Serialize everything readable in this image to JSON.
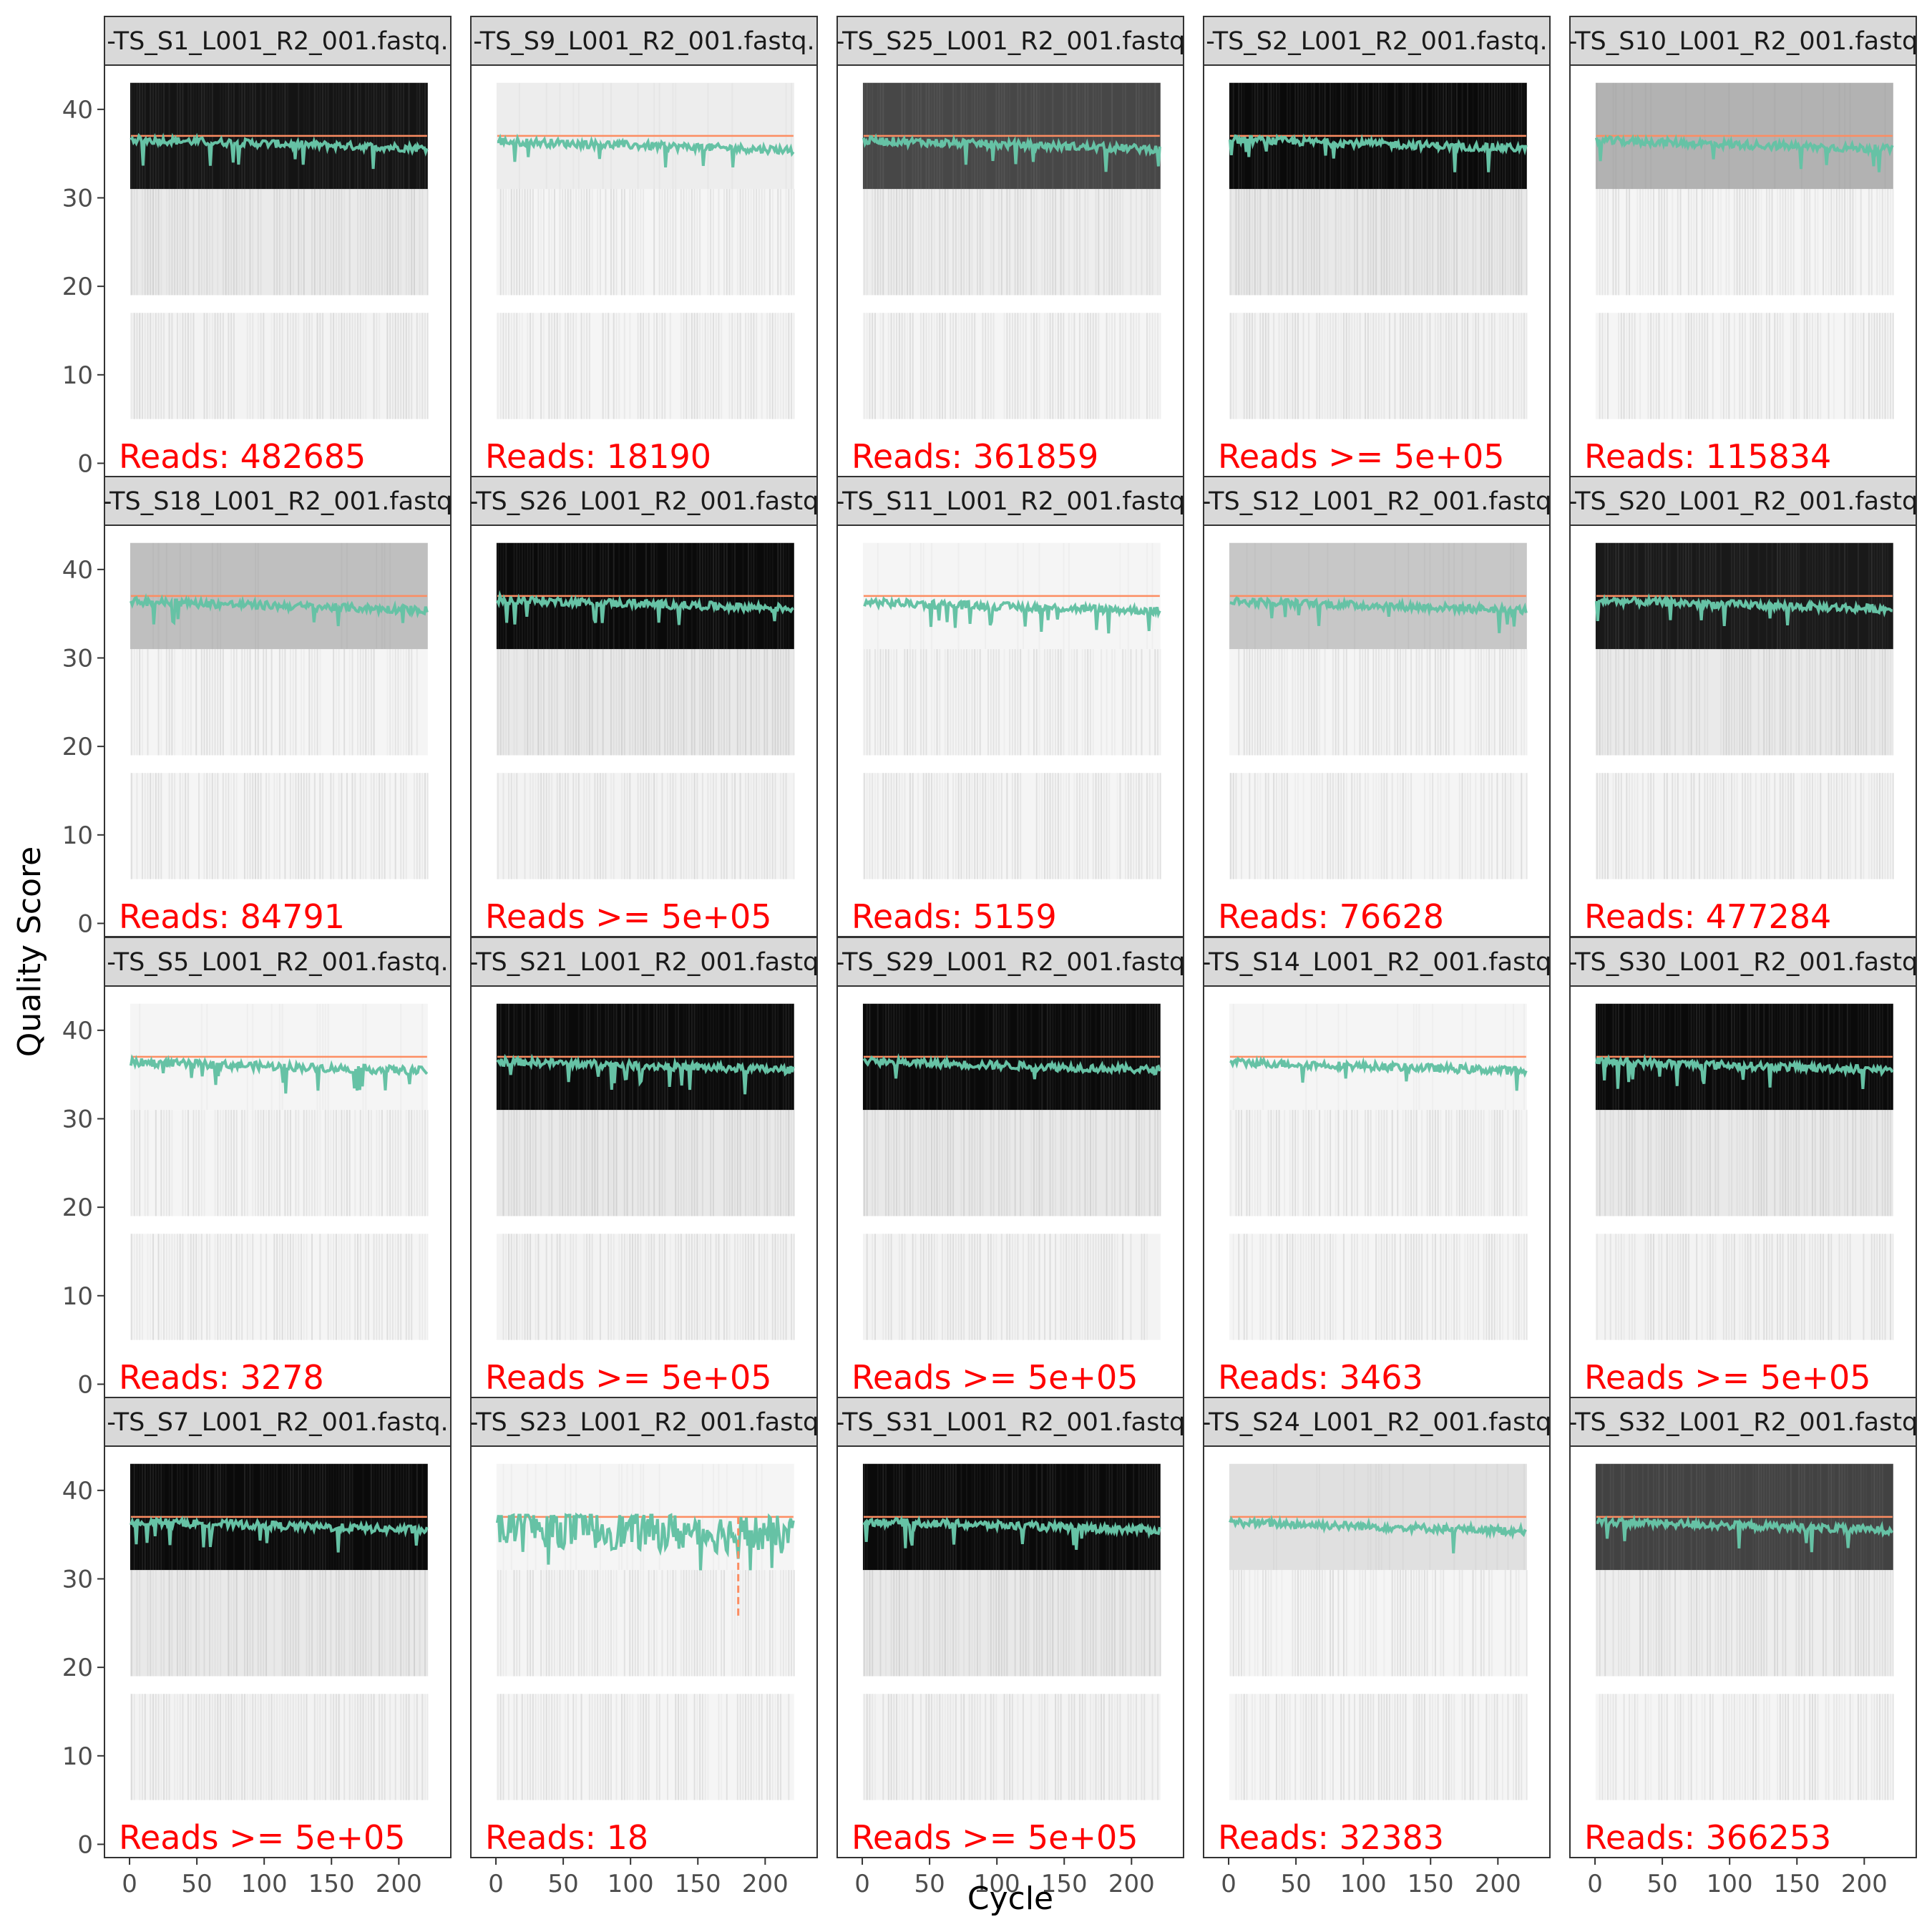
{
  "chart_data": {
    "type": "line",
    "xlabel": "Cycle",
    "ylabel": "Quality Score",
    "xlim": [
      -8,
      228
    ],
    "ylim": [
      -1.5,
      45
    ],
    "x_ticks": [
      0,
      50,
      100,
      150,
      200
    ],
    "y_ticks": [
      0,
      10,
      20,
      30,
      40
    ],
    "cycles": 221,
    "colors": {
      "mean_line": "#66c2a5",
      "median_line": "#fc8d62",
      "reads_label": "#ff0000",
      "strip_fill": "#d9d9d9"
    },
    "panels": [
      {
        "strip": "-TS_S1_L001_R2_001.fastq.",
        "reads": "Reads:  482685",
        "shade": 0.92,
        "median": 37,
        "mean": 36.2
      },
      {
        "strip": "-TS_S9_L001_R2_001.fastq.",
        "reads": "Reads:  18190",
        "shade": 0.07,
        "median": 37,
        "mean": 36.0
      },
      {
        "strip": "-TS_S25_L001_R2_001.fastq",
        "reads": "Reads:  361859",
        "shade": 0.72,
        "median": 37,
        "mean": 36.1
      },
      {
        "strip": "-TS_S2_L001_R2_001.fastq.",
        "reads": "Reads >=  5e+05",
        "shade": 0.96,
        "median": 37,
        "mean": 36.2
      },
      {
        "strip": "-TS_S10_L001_R2_001.fastq",
        "reads": "Reads:  115834",
        "shade": 0.3,
        "median": 37,
        "mean": 36.1
      },
      {
        "strip": "-TS_S18_L001_R2_001.fastq",
        "reads": "Reads:  84791",
        "shade": 0.25,
        "median": 37,
        "mean": 36.0
      },
      {
        "strip": "-TS_S26_L001_R2_001.fastq",
        "reads": "Reads >=  5e+05",
        "shade": 0.96,
        "median": 37,
        "mean": 36.2
      },
      {
        "strip": "-TS_S11_L001_R2_001.fastq",
        "reads": "Reads:  5159",
        "shade": 0.03,
        "median": 37,
        "mean": 35.9
      },
      {
        "strip": "-TS_S12_L001_R2_001.fastq",
        "reads": "Reads:  76628",
        "shade": 0.22,
        "median": 37,
        "mean": 36.0
      },
      {
        "strip": "-TS_S20_L001_R2_001.fastq",
        "reads": "Reads:  477284",
        "shade": 0.9,
        "median": 37,
        "mean": 36.1
      },
      {
        "strip": "-TS_S5_L001_R2_001.fastq.",
        "reads": "Reads:  3278",
        "shade": 0.04,
        "median": 37,
        "mean": 36.0
      },
      {
        "strip": "-TS_S21_L001_R2_001.fastq",
        "reads": "Reads >=  5e+05",
        "shade": 0.96,
        "median": 37,
        "mean": 36.1
      },
      {
        "strip": "-TS_S29_L001_R2_001.fastq",
        "reads": "Reads >=  5e+05",
        "shade": 0.96,
        "median": 37,
        "mean": 36.1
      },
      {
        "strip": "-TS_S14_L001_R2_001.fastq",
        "reads": "Reads:  3463",
        "shade": 0.04,
        "median": 37,
        "mean": 36.0
      },
      {
        "strip": "-TS_S30_L001_R2_001.fastq",
        "reads": "Reads >=  5e+05",
        "shade": 0.96,
        "median": 37,
        "mean": 36.1
      },
      {
        "strip": "-TS_S7_L001_R2_001.fastq.",
        "reads": "Reads >=  5e+05",
        "shade": 0.96,
        "median": 37,
        "mean": 36.1
      },
      {
        "strip": "-TS_S23_L001_R2_001.fastq",
        "reads": "Reads:  18",
        "shade": 0.02,
        "median": 37,
        "mean": 35.5
      },
      {
        "strip": "-TS_S31_L001_R2_001.fastq",
        "reads": "Reads >=  5e+05",
        "shade": 0.96,
        "median": 37,
        "mean": 36.1
      },
      {
        "strip": "-TS_S24_L001_R2_001.fastq",
        "reads": "Reads:  32383",
        "shade": 0.12,
        "median": 37,
        "mean": 36.0
      },
      {
        "strip": "-TS_S32_L001_R2_001.fastq",
        "reads": "Reads:  366253",
        "shade": 0.74,
        "median": 37,
        "mean": 36.1
      }
    ]
  }
}
